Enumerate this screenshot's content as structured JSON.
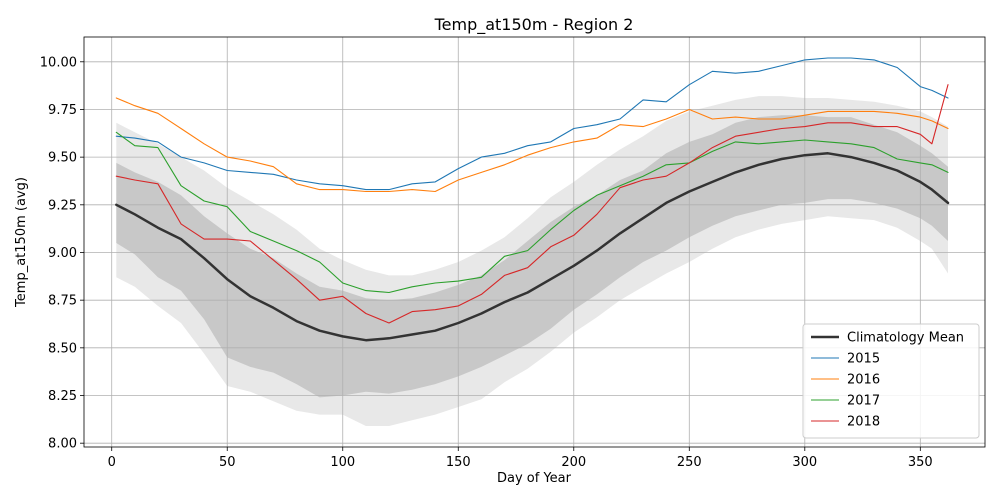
{
  "colors": {
    "climatology": "#333333",
    "y2015": "#1f77b4",
    "y2016": "#ff7f0e",
    "y2017": "#2ca02c",
    "y2018": "#d62728",
    "band_outer": "#e8e8e8",
    "band_inner": "#c8c8c8"
  },
  "chart_data": {
    "type": "line",
    "title": "Temp_at150m - Region 2",
    "xlabel": "Day of Year",
    "ylabel": "Temp_at150m (avg)",
    "xlim": [
      -12,
      378
    ],
    "ylim": [
      7.98,
      10.13
    ],
    "xticks": [
      0,
      50,
      100,
      150,
      200,
      250,
      300,
      350
    ],
    "xtick_labels": [
      "0",
      "50",
      "100",
      "150",
      "200",
      "250",
      "300",
      "350"
    ],
    "yticks": [
      8.0,
      8.25,
      8.5,
      8.75,
      9.0,
      9.25,
      9.5,
      9.75,
      10.0
    ],
    "ytick_labels": [
      "8.00",
      "8.25",
      "8.50",
      "8.75",
      "9.00",
      "9.25",
      "9.50",
      "9.75",
      "10.00"
    ],
    "grid": true,
    "legend_position": "bottom-right",
    "x": [
      2,
      10,
      20,
      30,
      40,
      50,
      60,
      70,
      80,
      90,
      100,
      110,
      120,
      130,
      140,
      150,
      160,
      170,
      180,
      190,
      200,
      210,
      220,
      230,
      240,
      250,
      260,
      270,
      280,
      290,
      300,
      310,
      320,
      330,
      340,
      350,
      355,
      362
    ],
    "bands": [
      {
        "name": "outer",
        "lower": [
          8.87,
          8.82,
          8.72,
          8.63,
          8.47,
          8.3,
          8.27,
          8.22,
          8.17,
          8.15,
          8.15,
          8.09,
          8.09,
          8.12,
          8.15,
          8.19,
          8.23,
          8.32,
          8.39,
          8.48,
          8.58,
          8.66,
          8.75,
          8.82,
          8.89,
          8.95,
          9.02,
          9.08,
          9.12,
          9.15,
          9.17,
          9.19,
          9.18,
          9.17,
          9.13,
          9.06,
          9.02,
          8.89
        ],
        "upper": [
          9.68,
          9.63,
          9.57,
          9.5,
          9.43,
          9.34,
          9.27,
          9.2,
          9.12,
          9.02,
          8.96,
          8.91,
          8.88,
          8.88,
          8.91,
          8.95,
          9.01,
          9.08,
          9.18,
          9.29,
          9.37,
          9.46,
          9.54,
          9.61,
          9.69,
          9.74,
          9.77,
          9.8,
          9.82,
          9.82,
          9.81,
          9.81,
          9.8,
          9.79,
          9.77,
          9.74,
          9.71,
          9.66
        ]
      },
      {
        "name": "inner",
        "lower": [
          9.05,
          8.99,
          8.87,
          8.8,
          8.65,
          8.45,
          8.4,
          8.37,
          8.31,
          8.24,
          8.25,
          8.27,
          8.26,
          8.28,
          8.31,
          8.35,
          8.4,
          8.46,
          8.52,
          8.6,
          8.7,
          8.78,
          8.87,
          8.95,
          9.01,
          9.08,
          9.14,
          9.19,
          9.22,
          9.25,
          9.26,
          9.28,
          9.28,
          9.26,
          9.23,
          9.18,
          9.14,
          9.06
        ],
        "upper": [
          9.47,
          9.42,
          9.37,
          9.3,
          9.19,
          9.1,
          9.02,
          8.97,
          8.89,
          8.82,
          8.8,
          8.76,
          8.75,
          8.76,
          8.79,
          8.83,
          8.88,
          8.96,
          9.06,
          9.16,
          9.24,
          9.3,
          9.38,
          9.43,
          9.52,
          9.58,
          9.62,
          9.68,
          9.71,
          9.72,
          9.72,
          9.71,
          9.71,
          9.67,
          9.63,
          9.56,
          9.52,
          9.45
        ]
      }
    ],
    "series": [
      {
        "name": "Climatology Mean",
        "color_key": "climatology",
        "width": 2.5,
        "values": [
          9.25,
          9.2,
          9.13,
          9.07,
          8.97,
          8.86,
          8.77,
          8.71,
          8.64,
          8.59,
          8.56,
          8.54,
          8.55,
          8.57,
          8.59,
          8.63,
          8.68,
          8.74,
          8.79,
          8.86,
          8.93,
          9.01,
          9.1,
          9.18,
          9.26,
          9.32,
          9.37,
          9.42,
          9.46,
          9.49,
          9.51,
          9.52,
          9.5,
          9.47,
          9.43,
          9.37,
          9.33,
          9.26
        ]
      },
      {
        "name": "2015",
        "color_key": "y2015",
        "width": 1.1,
        "values": [
          9.61,
          9.6,
          9.58,
          9.5,
          9.47,
          9.43,
          9.42,
          9.41,
          9.38,
          9.36,
          9.35,
          9.33,
          9.33,
          9.36,
          9.37,
          9.44,
          9.5,
          9.52,
          9.56,
          9.58,
          9.65,
          9.67,
          9.7,
          9.8,
          9.79,
          9.88,
          9.95,
          9.94,
          9.95,
          9.98,
          10.01,
          10.02,
          10.02,
          10.01,
          9.97,
          9.87,
          9.85,
          9.81
        ]
      },
      {
        "name": "2016",
        "color_key": "y2016",
        "width": 1.1,
        "values": [
          9.81,
          9.77,
          9.73,
          9.65,
          9.57,
          9.5,
          9.48,
          9.45,
          9.36,
          9.33,
          9.33,
          9.32,
          9.32,
          9.33,
          9.32,
          9.38,
          9.42,
          9.46,
          9.51,
          9.55,
          9.58,
          9.6,
          9.67,
          9.66,
          9.7,
          9.75,
          9.7,
          9.71,
          9.7,
          9.7,
          9.72,
          9.74,
          9.74,
          9.74,
          9.73,
          9.71,
          9.69,
          9.65
        ]
      },
      {
        "name": "2017",
        "color_key": "y2017",
        "width": 1.1,
        "values": [
          9.63,
          9.56,
          9.55,
          9.35,
          9.27,
          9.24,
          9.11,
          9.06,
          9.01,
          8.95,
          8.84,
          8.8,
          8.79,
          8.82,
          8.84,
          8.85,
          8.87,
          8.98,
          9.01,
          9.12,
          9.22,
          9.3,
          9.35,
          9.4,
          9.46,
          9.47,
          9.53,
          9.58,
          9.57,
          9.58,
          9.59,
          9.58,
          9.57,
          9.55,
          9.49,
          9.47,
          9.46,
          9.42
        ]
      },
      {
        "name": "2018",
        "color_key": "y2018",
        "width": 1.1,
        "values": [
          9.4,
          9.38,
          9.36,
          9.15,
          9.07,
          9.07,
          9.06,
          8.96,
          8.86,
          8.75,
          8.77,
          8.68,
          8.63,
          8.69,
          8.7,
          8.72,
          8.78,
          8.88,
          8.92,
          9.03,
          9.09,
          9.2,
          9.34,
          9.38,
          9.4,
          9.47,
          9.55,
          9.61,
          9.63,
          9.65,
          9.66,
          9.68,
          9.68,
          9.66,
          9.66,
          9.62,
          9.57,
          9.88
        ]
      }
    ]
  }
}
